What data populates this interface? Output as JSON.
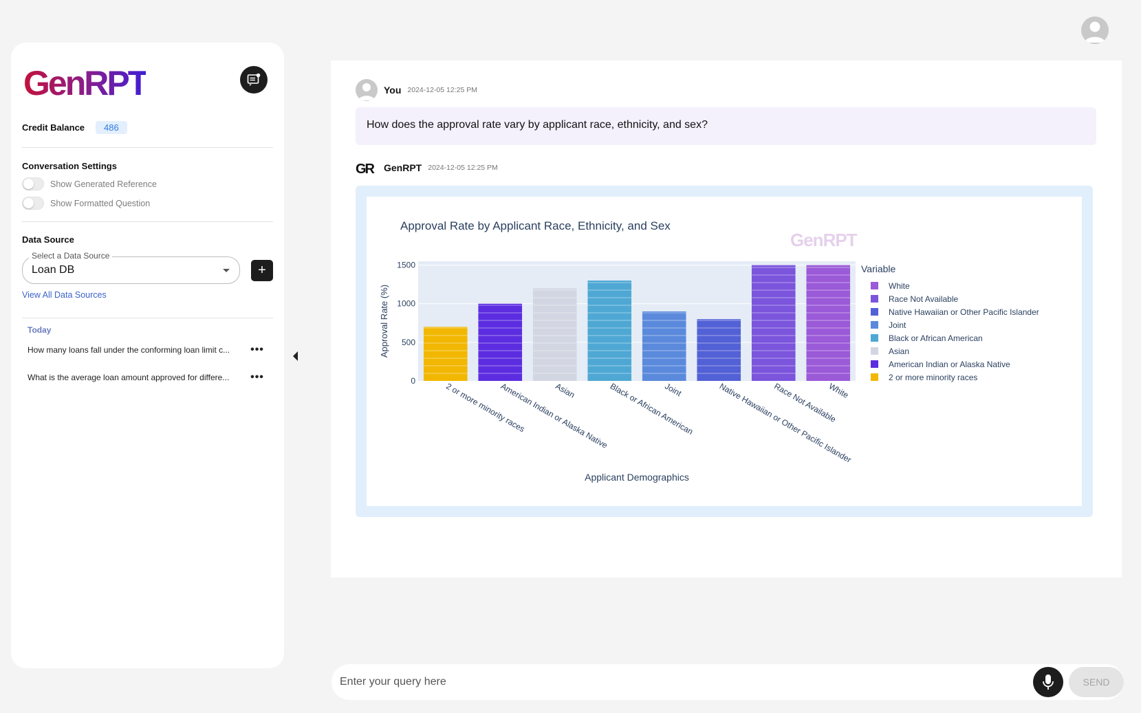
{
  "sidebar": {
    "logo_text": "GenRPT",
    "credit_label": "Credit Balance",
    "credit_value": "486",
    "conversation_settings_title": "Conversation Settings",
    "toggle_reference_label": "Show Generated Reference",
    "toggle_formatted_label": "Show Formatted Question",
    "data_source_title": "Data Source",
    "select_label": "Select a Data Source",
    "select_value": "Loan DB",
    "add_source_label": "+",
    "view_all_label": "View All Data Sources",
    "today_label": "Today",
    "history": [
      {
        "text": "How many loans fall under the conforming loan limit c..."
      },
      {
        "text": "What is the average loan amount approved for differe..."
      }
    ],
    "more_label": "•••"
  },
  "chat": {
    "user_message": {
      "author": "You",
      "time": "2024-12-05 12:25 PM",
      "text": "How does the approval rate vary by applicant race, ethnicity, and sex?"
    },
    "bot_message": {
      "logo": "GR",
      "author": "GenRPT",
      "time": "2024-12-05 12:25 PM"
    }
  },
  "input": {
    "placeholder": "Enter your query here",
    "send_label": "SEND"
  },
  "icons": {
    "new_chat": "chat-add-icon",
    "mic": "microphone-icon",
    "collapse": "caret-left-icon",
    "avatar": "user-avatar-icon"
  },
  "colors": {
    "accent_link": "#3a63c8",
    "credit_badge_bg": "#e3effd",
    "question_bg": "#f4f1fd",
    "chart_frame_bg": "#e1eefb",
    "plot_bg": "#e5ecf6"
  },
  "chart_data": {
    "type": "bar",
    "title": "Approval Rate by Applicant Race, Ethnicity, and Sex",
    "watermark": "GenRPT",
    "xlabel": "Applicant Demographics",
    "ylabel": "Approval Rate (%)",
    "ylim": [
      0,
      1550
    ],
    "yticks": [
      0,
      500,
      1000,
      1500
    ],
    "legend_title": "Variable",
    "legend_position": "right",
    "grid": true,
    "categories": [
      "2 or more minority races",
      "American Indian or Alaska Native",
      "Asian",
      "Black or African American",
      "Joint",
      "Native Hawaiian or Other Pacific Islander",
      "Race Not Available",
      "White"
    ],
    "values": [
      700,
      1000,
      1200,
      1300,
      900,
      800,
      1500,
      1500
    ],
    "colors": [
      "#f2b700",
      "#5c2de0",
      "#d2d6e2",
      "#4fa8d4",
      "#5b8adc",
      "#5361d6",
      "#7b55dc",
      "#9b5ad8"
    ],
    "legend": [
      "White",
      "Race Not Available",
      "Native Hawaiian or Other Pacific Islander",
      "Joint",
      "Black or African American",
      "Asian",
      "American Indian or Alaska Native",
      "2 or more minority races"
    ]
  }
}
